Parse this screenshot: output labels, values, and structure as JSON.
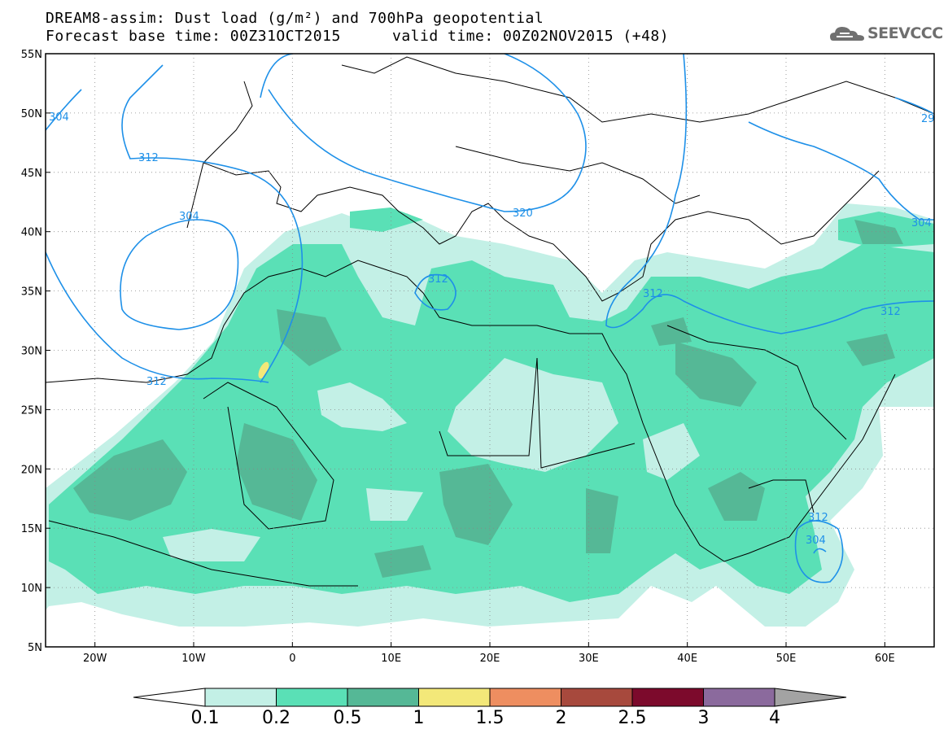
{
  "header": {
    "line1": "DREAM8-assim: Dust load (g/m²) and 700hPa geopotential",
    "line2_left": "Forecast base time: 00Z31OCT2015",
    "line2_right": "valid time: 00Z02NOV2015 (+48)"
  },
  "logo": {
    "text": "SEEVCCC",
    "icon": "cloud-logo-icon",
    "color": "#6f6f6f"
  },
  "map": {
    "lon_range": [
      -25,
      65
    ],
    "lat_range": [
      5,
      55
    ],
    "lon_ticks": [
      "20W",
      "10W",
      "0",
      "10E",
      "20E",
      "30E",
      "40E",
      "50E",
      "60E"
    ],
    "lat_ticks": [
      "55N",
      "50N",
      "45N",
      "40N",
      "35N",
      "30N",
      "25N",
      "20N",
      "15N",
      "10N",
      "5N"
    ],
    "contour_color": "#1e90e8",
    "contour_labels": [
      "304",
      "312",
      "304",
      "312",
      "312",
      "320",
      "312",
      "312",
      "312",
      "304",
      "304",
      "29"
    ]
  },
  "colorbar": {
    "bounds": [
      "0.1",
      "0.2",
      "0.5",
      "1",
      "1.5",
      "2",
      "2.5",
      "3",
      "4"
    ],
    "colors": [
      "#c3f0e6",
      "#5ae0b6",
      "#55b896",
      "#f3e879",
      "#ee8e60",
      "#a7493d",
      "#7c0a2c",
      "#8b6a9d",
      "#a3a3a3"
    ]
  }
}
